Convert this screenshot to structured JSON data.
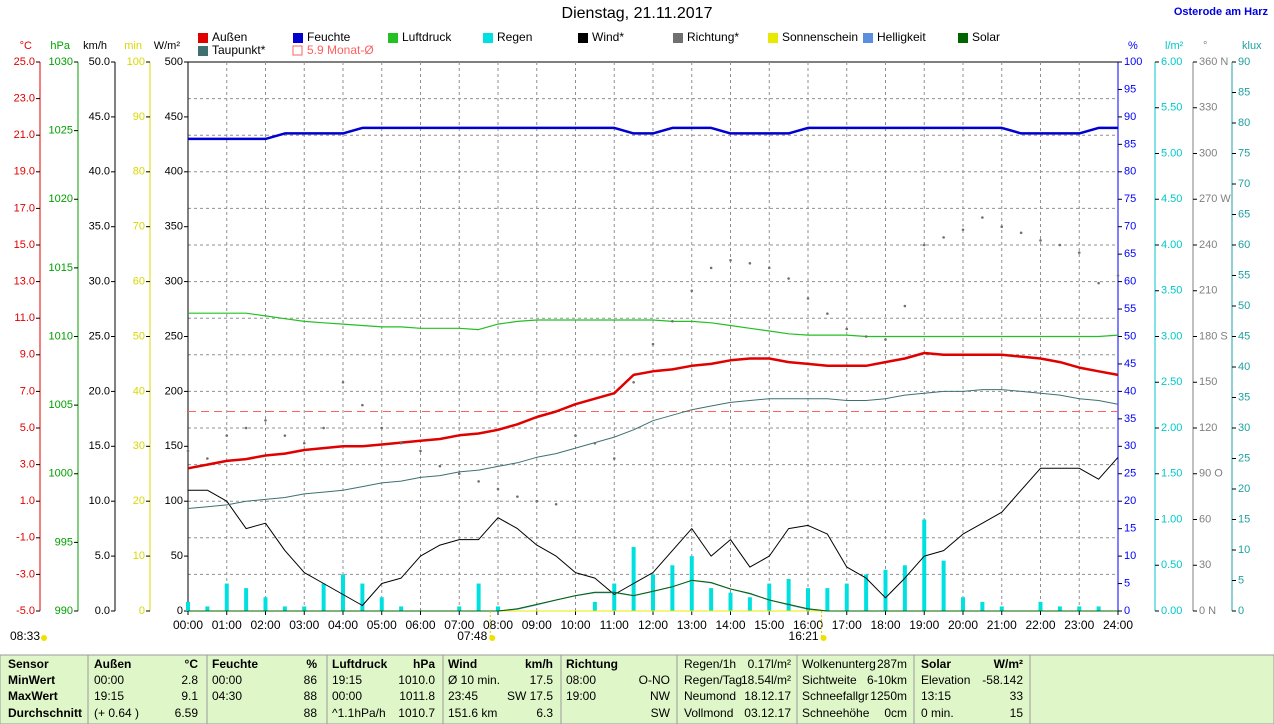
{
  "chart_data": {
    "type": "line",
    "title": "Dienstag, 21.11.2017",
    "location": "Osterode am Harz",
    "grid": true,
    "xlim": [
      0,
      24
    ],
    "xticks": [
      {
        "value": 0,
        "label": "00:00"
      },
      {
        "value": 1,
        "label": "01:00"
      },
      {
        "value": 2,
        "label": "02:00"
      },
      {
        "value": 3,
        "label": "03:00"
      },
      {
        "value": 4,
        "label": "04:00"
      },
      {
        "value": 5,
        "label": "05:00"
      },
      {
        "value": 6,
        "label": "06:00"
      },
      {
        "value": 7,
        "label": "07:00"
      },
      {
        "value": 8,
        "label": "08:00"
      },
      {
        "value": 9,
        "label": "09:00"
      },
      {
        "value": 10,
        "label": "10:00"
      },
      {
        "value": 11,
        "label": "11:00"
      },
      {
        "value": 12,
        "label": "12:00"
      },
      {
        "value": 13,
        "label": "13:00"
      },
      {
        "value": 14,
        "label": "14:00"
      },
      {
        "value": 15,
        "label": "15:00"
      },
      {
        "value": 16,
        "label": "16:00"
      },
      {
        "value": 17,
        "label": "17:00"
      },
      {
        "value": 18,
        "label": "18:00"
      },
      {
        "value": 19,
        "label": "19:00"
      },
      {
        "value": 20,
        "label": "20:00"
      },
      {
        "value": 21,
        "label": "21:00"
      },
      {
        "value": 22,
        "label": "22:00"
      },
      {
        "value": 23,
        "label": "23:00"
      },
      {
        "value": 24,
        "label": "24:00"
      }
    ],
    "axes": [
      {
        "name": "°C",
        "color": "#e00000",
        "lim": [
          -5,
          25
        ],
        "ticks": [
          {
            "value": 25,
            "label": "25.0"
          },
          {
            "value": 23,
            "label": "23.0"
          },
          {
            "value": 21,
            "label": "21.0"
          },
          {
            "value": 19,
            "label": "19.0"
          },
          {
            "value": 17,
            "label": "17.0"
          },
          {
            "value": 15,
            "label": "15.0"
          },
          {
            "value": 13,
            "label": "13.0"
          },
          {
            "value": 11,
            "label": "11.0"
          },
          {
            "value": 9,
            "label": "9.0"
          },
          {
            "value": 7,
            "label": "7.0"
          },
          {
            "value": 5,
            "label": "5.0"
          },
          {
            "value": 3,
            "label": "3.0"
          },
          {
            "value": 1,
            "label": "1.0"
          },
          {
            "value": -1,
            "label": "-1.0"
          },
          {
            "value": -3,
            "label": "-3.0"
          },
          {
            "value": -5,
            "label": "-5.0"
          }
        ]
      },
      {
        "name": "hPa",
        "color": "#00a000",
        "lim": [
          990,
          1030
        ],
        "ticks": [
          1030,
          1025,
          1020,
          1015,
          1010,
          1005,
          1000,
          995,
          990
        ]
      },
      {
        "name": "km/h",
        "color": "#000000",
        "lim": [
          0,
          50
        ],
        "ticks": [
          {
            "value": 50,
            "label": "50.0"
          },
          {
            "value": 45,
            "label": "45.0"
          },
          {
            "value": 40,
            "label": "40.0"
          },
          {
            "value": 35,
            "label": "35.0"
          },
          {
            "value": 30,
            "label": "30.0"
          },
          {
            "value": 25,
            "label": "25.0"
          },
          {
            "value": 20,
            "label": "20.0"
          },
          {
            "value": 15,
            "label": "15.0"
          },
          {
            "value": 10,
            "label": "10.0"
          },
          {
            "value": 5,
            "label": "5.0"
          },
          {
            "value": 0,
            "label": "0.0"
          }
        ]
      },
      {
        "name": "min",
        "color": "#d8d800",
        "lim": [
          0,
          100
        ],
        "ticks": [
          100,
          90,
          80,
          70,
          60,
          50,
          40,
          30,
          20,
          10,
          0
        ]
      },
      {
        "name": "W/m²",
        "color": "#000000",
        "lim": [
          0,
          500
        ],
        "ticks": [
          500,
          450,
          400,
          350,
          300,
          250,
          200,
          150,
          100,
          50,
          0
        ]
      },
      {
        "name": "%",
        "color": "#0000ff",
        "lim": [
          0,
          100
        ],
        "ticks": [
          100,
          95,
          90,
          85,
          80,
          75,
          70,
          65,
          60,
          55,
          50,
          45,
          40,
          35,
          30,
          25,
          20,
          15,
          10,
          5,
          0
        ]
      },
      {
        "name": "l/m²",
        "color": "#00c8c8",
        "lim": [
          0,
          6
        ],
        "ticks": [
          {
            "value": 6,
            "label": "6.00"
          },
          {
            "value": 5.5,
            "label": "5.50"
          },
          {
            "value": 5,
            "label": "5.00"
          },
          {
            "value": 4.5,
            "label": "4.50"
          },
          {
            "value": 4,
            "label": "4.00"
          },
          {
            "value": 3.5,
            "label": "3.50"
          },
          {
            "value": 3,
            "label": "3.00"
          },
          {
            "value": 2.5,
            "label": "2.50"
          },
          {
            "value": 2,
            "label": "2.00"
          },
          {
            "value": 1.5,
            "label": "1.50"
          },
          {
            "value": 1,
            "label": "1.00"
          },
          {
            "value": 0.5,
            "label": "0.50"
          },
          {
            "value": 0,
            "label": "0.00"
          }
        ]
      },
      {
        "name": "°",
        "color": "#808080",
        "lim": [
          0,
          360
        ],
        "ticks": [
          {
            "value": 360,
            "label": "360 N"
          },
          330,
          300,
          {
            "value": 270,
            "label": "270 W"
          },
          240,
          210,
          {
            "value": 180,
            "label": "180 S"
          },
          150,
          120,
          {
            "value": 90,
            "label": "90 O"
          },
          60,
          30,
          {
            "value": 0,
            "label": "0 N"
          }
        ]
      },
      {
        "name": "klux",
        "color": "#1fa0a0",
        "lim": [
          0,
          90
        ],
        "ticks": [
          90,
          85,
          80,
          75,
          70,
          65,
          60,
          55,
          50,
          45,
          40,
          35,
          30,
          25,
          20,
          15,
          10,
          5,
          0
        ]
      }
    ],
    "x": [
      0,
      0.5,
      1,
      1.5,
      2,
      2.5,
      3,
      3.5,
      4,
      4.5,
      5,
      5.5,
      6,
      6.5,
      7,
      7.5,
      8,
      8.5,
      9,
      9.5,
      10,
      10.5,
      11,
      11.5,
      12,
      12.5,
      13,
      13.5,
      14,
      14.5,
      15,
      15.5,
      16,
      16.5,
      17,
      17.5,
      18,
      18.5,
      19,
      19.5,
      20,
      20.5,
      21,
      21.5,
      22,
      22.5,
      23,
      23.5,
      24
    ],
    "series": [
      {
        "name": "Außen",
        "color": "#e00000",
        "axis": "°C",
        "kind": "line",
        "width": 2.5,
        "values": [
          2.8,
          3.0,
          3.2,
          3.3,
          3.5,
          3.6,
          3.8,
          3.9,
          4.0,
          4.0,
          4.1,
          4.2,
          4.3,
          4.4,
          4.6,
          4.7,
          4.9,
          5.2,
          5.6,
          5.9,
          6.3,
          6.6,
          6.9,
          7.9,
          8.1,
          8.2,
          8.4,
          8.5,
          8.7,
          8.8,
          8.8,
          8.6,
          8.5,
          8.4,
          8.4,
          8.4,
          8.6,
          8.8,
          9.1,
          9.0,
          9.0,
          9.0,
          9.0,
          8.9,
          8.8,
          8.6,
          8.3,
          8.1,
          7.9
        ]
      },
      {
        "name": "Feuchte",
        "color": "#0000d0",
        "axis": "%",
        "kind": "line",
        "width": 2.5,
        "values": [
          86,
          86,
          86,
          86,
          86,
          87,
          87,
          87,
          87,
          88,
          88,
          88,
          88,
          88,
          88,
          88,
          88,
          88,
          88,
          88,
          88,
          88,
          88,
          87,
          87,
          88,
          88,
          88,
          87,
          87,
          87,
          87,
          88,
          88,
          88,
          88,
          88,
          88,
          88,
          88,
          88,
          88,
          88,
          87,
          87,
          87,
          87,
          88,
          88
        ]
      },
      {
        "name": "Luftdruck",
        "color": "#22c022",
        "axis": "hPa",
        "kind": "line",
        "width": 1.2,
        "values": [
          1011.7,
          1011.7,
          1011.7,
          1011.7,
          1011.5,
          1011.3,
          1011.1,
          1011.0,
          1010.9,
          1010.8,
          1010.7,
          1010.7,
          1010.6,
          1010.6,
          1010.6,
          1010.5,
          1010.9,
          1011.1,
          1011.2,
          1011.2,
          1011.2,
          1011.2,
          1011.2,
          1011.2,
          1011.2,
          1011.1,
          1011.1,
          1011.0,
          1010.8,
          1010.6,
          1010.4,
          1010.2,
          1010.1,
          1010.1,
          1010.1,
          1010.0,
          1010.0,
          1010.0,
          1010.0,
          1010.0,
          1010.0,
          1010.0,
          1010.0,
          1010.0,
          1010.0,
          1010.0,
          1010.0,
          1010.0,
          1010.1
        ]
      },
      {
        "name": "Regen",
        "color": "#00e0e0",
        "axis": "l/m²",
        "kind": "bar",
        "values": [
          0.1,
          0.05,
          0.3,
          0.25,
          0.15,
          0.05,
          0.05,
          0.3,
          0.4,
          0.3,
          0.15,
          0.05,
          0,
          0,
          0.05,
          0.3,
          0.05,
          0,
          0,
          0,
          0,
          0.1,
          0.3,
          0.7,
          0.4,
          0.5,
          0.6,
          0.25,
          0.2,
          0.15,
          0.3,
          0.35,
          0.25,
          0.25,
          0.3,
          0.4,
          0.45,
          0.5,
          1.0,
          0.55,
          0.15,
          0.1,
          0.05,
          0,
          0.1,
          0.05,
          0.05,
          0.05,
          0
        ]
      },
      {
        "name": "Wind*",
        "color": "#000000",
        "axis": "km/h",
        "kind": "line",
        "width": 1,
        "values": [
          11,
          11,
          10,
          7.5,
          8,
          5.5,
          3.5,
          2.5,
          1.5,
          0.5,
          2.5,
          3,
          5,
          6,
          6.5,
          6.5,
          8.5,
          7.5,
          6,
          5,
          3.5,
          3,
          1.5,
          2.5,
          3.5,
          5.5,
          7.5,
          5,
          6.5,
          4,
          5,
          7.5,
          7.8,
          7,
          4,
          3,
          1.2,
          3,
          5,
          5.5,
          7,
          8,
          9,
          11,
          13,
          13,
          13,
          12,
          14
        ]
      },
      {
        "name": "Richtung*",
        "color": "#707070",
        "axis": "°",
        "kind": "dot",
        "values": [
          105,
          100,
          115,
          120,
          125,
          115,
          110,
          120,
          150,
          135,
          120,
          110,
          105,
          95,
          90,
          85,
          80,
          75,
          72,
          70,
          115,
          110,
          100,
          150,
          175,
          190,
          210,
          225,
          230,
          228,
          225,
          218,
          205,
          195,
          185,
          180,
          178,
          200,
          240,
          245,
          250,
          258,
          252,
          248,
          243,
          240,
          235,
          215,
          220
        ]
      },
      {
        "name": "Sonnenschein",
        "color": "#e8e800",
        "axis": "min",
        "kind": "line",
        "width": 1,
        "values": [
          0,
          0,
          0,
          0,
          0,
          0,
          0,
          0,
          0,
          0,
          0,
          0,
          0,
          0,
          0,
          0,
          0,
          0,
          0,
          0,
          0,
          0,
          0,
          0,
          0,
          0,
          0,
          0,
          0,
          0,
          0,
          0,
          0,
          0,
          0,
          0,
          0,
          0,
          0,
          0,
          0,
          0,
          0,
          0,
          0,
          0,
          0,
          0,
          0
        ]
      },
      {
        "name": "Helligkeit",
        "color": "#5a8fe0",
        "axis": "klux",
        "kind": "line",
        "width": 1,
        "values": [
          0,
          0,
          0,
          0,
          0,
          0,
          0,
          0,
          0,
          0,
          0,
          0,
          0,
          0,
          0,
          0,
          0,
          0.3,
          1,
          1.8,
          2.5,
          3,
          3,
          2.5,
          3.2,
          4,
          5,
          4.6,
          3.6,
          2.8,
          1.8,
          1,
          0.3,
          0,
          0,
          0,
          0,
          0,
          0,
          0,
          0,
          0,
          0,
          0,
          0,
          0,
          0,
          0,
          0
        ]
      },
      {
        "name": "Solar",
        "color": "#006400",
        "axis": "W/m²",
        "kind": "line",
        "width": 1,
        "values": [
          0,
          0,
          0,
          0,
          0,
          0,
          0,
          0,
          0,
          0,
          0,
          0,
          0,
          0,
          0,
          0,
          0,
          2,
          6,
          10,
          14,
          17,
          17,
          14,
          18,
          22,
          28,
          26,
          20,
          16,
          10,
          6,
          2,
          0,
          0,
          0,
          0,
          0,
          0,
          0,
          0,
          0,
          0,
          0,
          0,
          0,
          0,
          0,
          0
        ]
      },
      {
        "name": "Taupunkt*",
        "color": "#3f7070",
        "axis": "°C",
        "kind": "line",
        "width": 1,
        "values": [
          0.6,
          0.7,
          0.8,
          1.0,
          1.1,
          1.2,
          1.4,
          1.5,
          1.6,
          1.8,
          2.0,
          2.1,
          2.3,
          2.4,
          2.6,
          2.7,
          2.9,
          3.1,
          3.4,
          3.6,
          3.9,
          4.2,
          4.5,
          4.9,
          5.4,
          5.7,
          6.0,
          6.2,
          6.4,
          6.5,
          6.6,
          6.6,
          6.6,
          6.6,
          6.5,
          6.5,
          6.6,
          6.8,
          6.9,
          7.0,
          7.0,
          7.1,
          7.1,
          7.0,
          6.9,
          6.8,
          6.6,
          6.5,
          6.3
        ]
      }
    ],
    "reference_line": {
      "label": "5.9 Monat-Ø",
      "value": 5.9,
      "axis": "°C",
      "color": "#ff6060"
    },
    "daylength": "08:33",
    "sunrise": {
      "label": "07:48",
      "x": 7.8
    },
    "sunset": {
      "label": "16:21",
      "x": 16.35
    }
  },
  "table": {
    "rows": [
      [
        "Sensor",
        "Außen",
        "°C",
        "Feuchte",
        "%",
        "Luftdruck",
        "hPa",
        "Wind",
        "km/h",
        "Richtung",
        null,
        "Regen/1h",
        "0.17l/m²",
        "Wolkenunterg",
        "287m",
        "Solar",
        "W/m²"
      ],
      [
        "MinWert",
        "00:00",
        "2.8",
        "00:00",
        "86",
        "19:15",
        "1010.0",
        "Ø 10 min.",
        "17.5",
        "08:00",
        "O-NO",
        "Regen/Tag",
        "18.54l/m²",
        "Sichtweite",
        "6-10km",
        "Elevation",
        "-58.142"
      ],
      [
        "MaxWert",
        "19:15",
        "9.1",
        "04:30",
        "88",
        "00:00",
        "1011.8",
        "23:45",
        "SW 17.5",
        "19:00",
        "NW",
        "Neumond",
        "18.12.17",
        "Schneefallgr",
        "1250m",
        "13:15",
        "33"
      ],
      [
        "Durchschnitt",
        "(+ 0.64 )",
        "6.59",
        null,
        "88",
        "^1.1hPa/h",
        "1010.7",
        "151.6 km",
        "6.3",
        null,
        "SW",
        "Vollmond",
        "03.12.17",
        "Schneehöhe",
        "0cm",
        "0 min.",
        "15"
      ]
    ]
  }
}
